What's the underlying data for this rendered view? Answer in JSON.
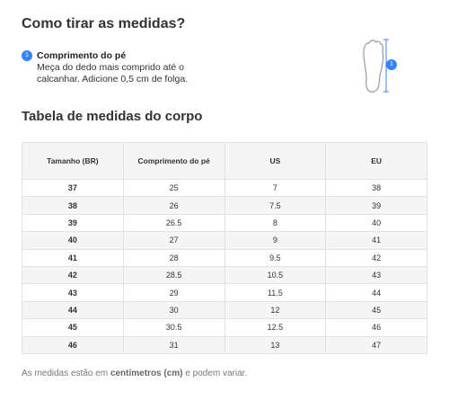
{
  "header": {
    "title": "Como tirar as medidas?"
  },
  "step": {
    "number": "1",
    "title": "Comprimento do pé",
    "text": "Meça do dedo mais comprido até o calcanhar. Adicione 0,5 cm de folga.",
    "image_badge": "1"
  },
  "table": {
    "title": "Tabela de medidas do corpo",
    "headers": [
      "Tamanho (BR)",
      "Comprimento do pé",
      "US",
      "EU"
    ],
    "rows": [
      [
        37,
        25,
        7,
        38
      ],
      [
        38,
        26,
        7.5,
        39
      ],
      [
        39,
        26.5,
        8,
        40
      ],
      [
        40,
        27,
        9,
        41
      ],
      [
        41,
        28,
        9.5,
        42
      ],
      [
        42,
        28.5,
        10.5,
        43
      ],
      [
        43,
        29,
        11.5,
        44
      ],
      [
        44,
        30,
        12,
        45
      ],
      [
        45,
        30.5,
        12.5,
        46
      ],
      [
        46,
        31,
        13,
        47
      ]
    ]
  },
  "footnote": {
    "before": "As medidas estão em ",
    "bold": "centímetros (cm)",
    "after": " e podem variar."
  }
}
